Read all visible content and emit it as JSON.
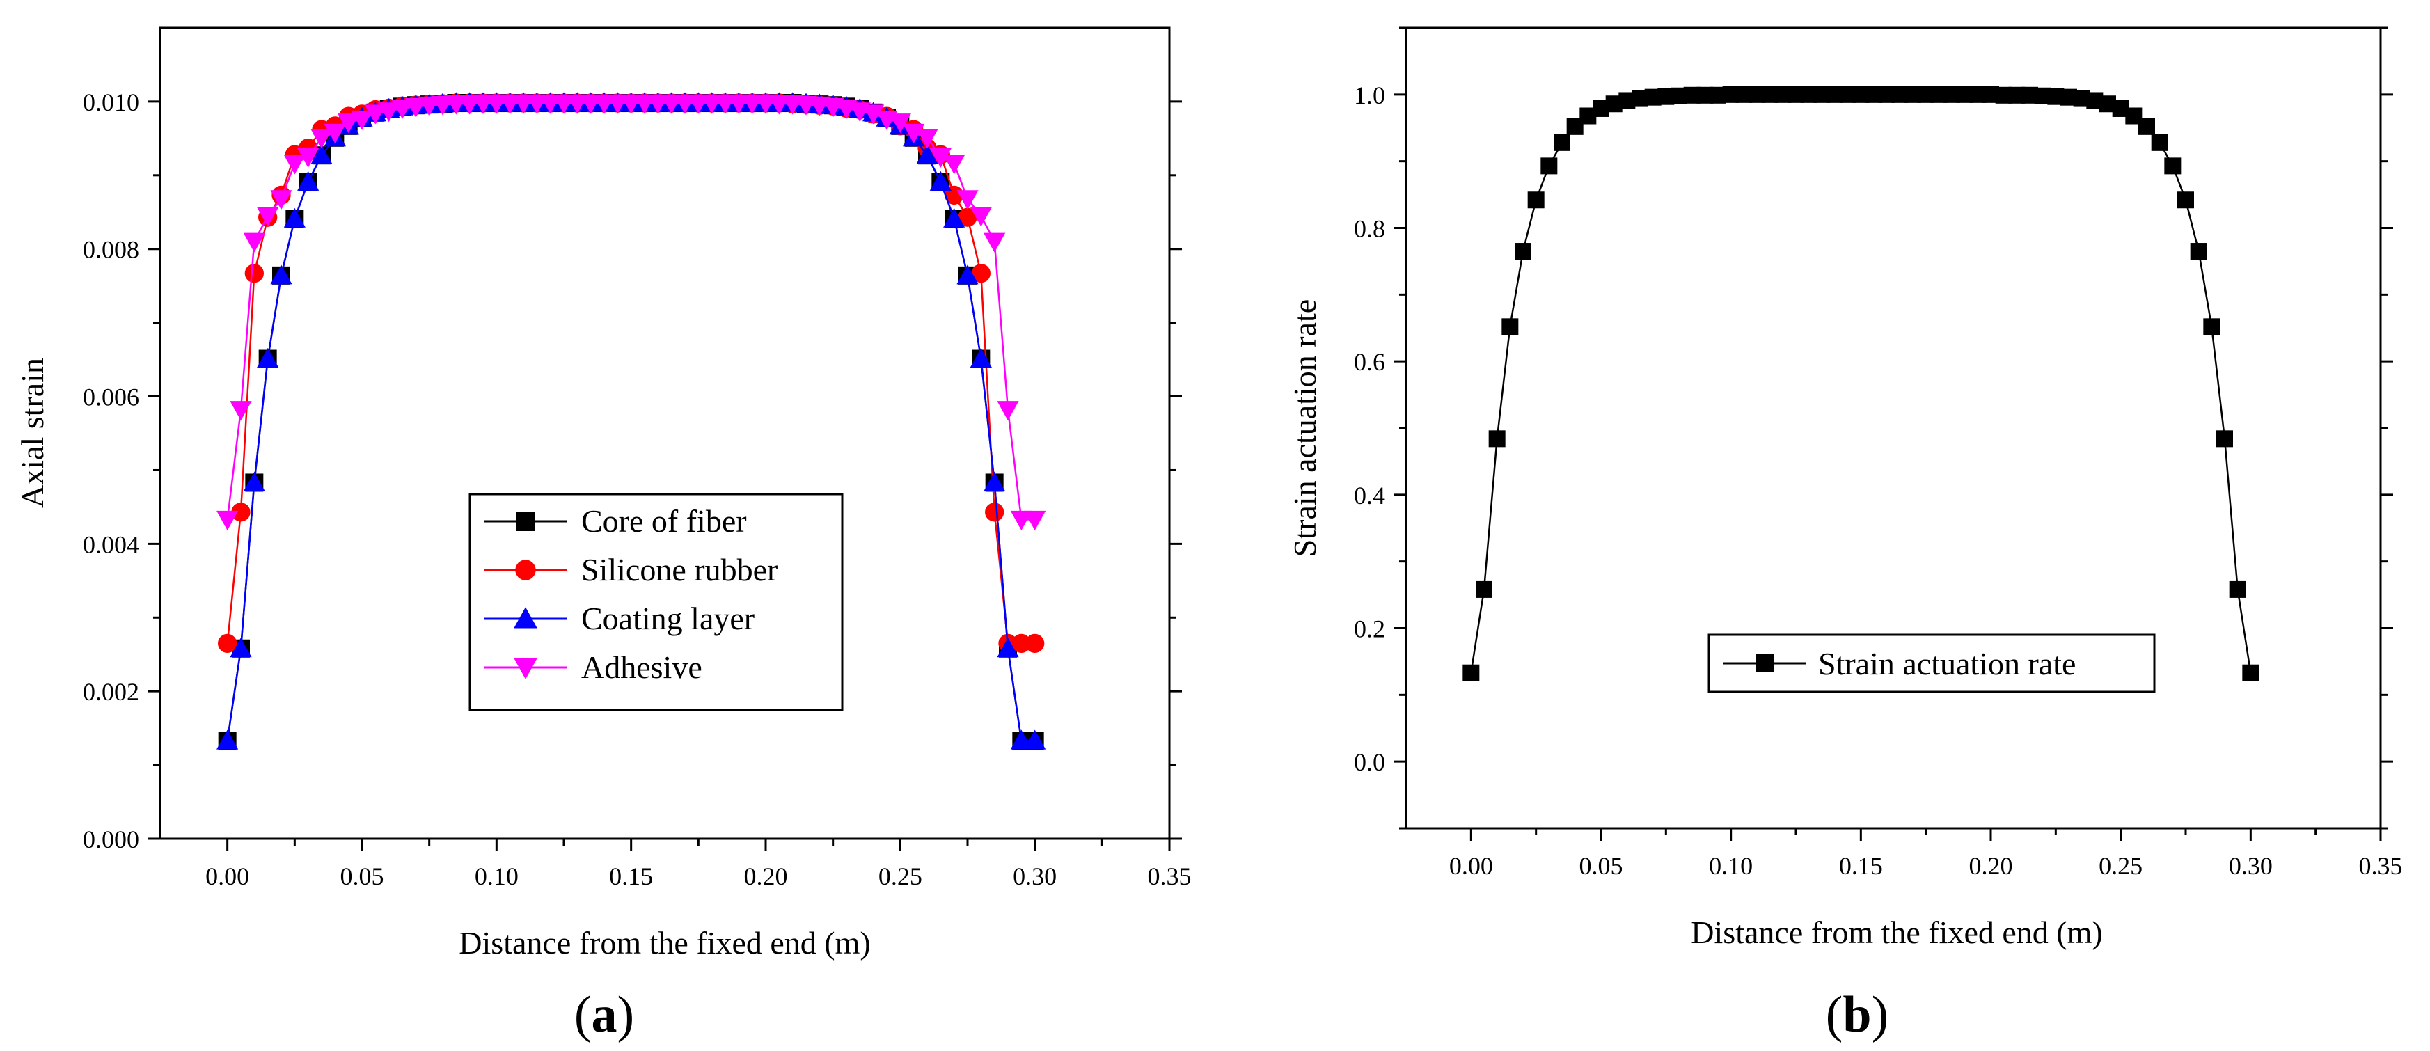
{
  "chart_data": [
    {
      "type": "line",
      "panel_label": {
        "open": "(",
        "letter": "a",
        "close": ")"
      },
      "title": "",
      "xlabel": "Distance from the fixed end (m)",
      "ylabel": "Axial strain",
      "xlim": [
        -0.025,
        0.35
      ],
      "ylim": [
        0.0,
        0.011
      ],
      "xticks": [
        0.0,
        0.05,
        0.1,
        0.15,
        0.2,
        0.25,
        0.3,
        0.35
      ],
      "xtick_labels": [
        "0.00",
        "0.05",
        "0.10",
        "0.15",
        "0.20",
        "0.25",
        "0.30",
        "0.35"
      ],
      "yticks": [
        0.0,
        0.002,
        0.004,
        0.006,
        0.008,
        0.01
      ],
      "ytick_labels": [
        "0.000",
        "0.002",
        "0.004",
        "0.006",
        "0.008",
        "0.010"
      ],
      "legend_position": "center-left",
      "series": [
        {
          "name": "Core of fiber",
          "color": "#000000",
          "marker": "square",
          "x": [
            0.0,
            0.005,
            0.01,
            0.015,
            0.02,
            0.025,
            0.03,
            0.035,
            0.04,
            0.045,
            0.05,
            0.055,
            0.06,
            0.065,
            0.07,
            0.075,
            0.08,
            0.085,
            0.09,
            0.095,
            0.1,
            0.105,
            0.11,
            0.115,
            0.12,
            0.125,
            0.13,
            0.135,
            0.14,
            0.145,
            0.15,
            0.155,
            0.16,
            0.165,
            0.17,
            0.175,
            0.18,
            0.185,
            0.19,
            0.195,
            0.2,
            0.205,
            0.21,
            0.215,
            0.22,
            0.225,
            0.23,
            0.235,
            0.24,
            0.245,
            0.25,
            0.255,
            0.26,
            0.265,
            0.27,
            0.275,
            0.28,
            0.285,
            0.29,
            0.295,
            0.3
          ],
          "y": [
            0.00133,
            0.00258,
            0.00483,
            0.00651,
            0.00764,
            0.00841,
            0.00891,
            0.00927,
            0.00951,
            0.00967,
            0.00978,
            0.00985,
            0.0099,
            0.00993,
            0.00995,
            0.00996,
            0.00997,
            0.00998,
            0.00998,
            0.00998,
            0.00998,
            0.00998,
            0.00998,
            0.00998,
            0.00998,
            0.00998,
            0.00998,
            0.00998,
            0.00998,
            0.00998,
            0.00998,
            0.00998,
            0.00998,
            0.00998,
            0.00998,
            0.00998,
            0.00998,
            0.00998,
            0.00998,
            0.00998,
            0.00998,
            0.00998,
            0.00998,
            0.00997,
            0.00996,
            0.00995,
            0.00993,
            0.0099,
            0.00985,
            0.00978,
            0.00967,
            0.00951,
            0.00927,
            0.00891,
            0.00841,
            0.00764,
            0.00651,
            0.00483,
            0.00258,
            0.00133,
            0.00133
          ]
        },
        {
          "name": "Silicone rubber",
          "color": "#ff0000",
          "marker": "circle",
          "x": [
            0.0,
            0.005,
            0.01,
            0.015,
            0.02,
            0.025,
            0.03,
            0.035,
            0.04,
            0.045,
            0.05,
            0.055,
            0.06,
            0.065,
            0.07,
            0.075,
            0.08,
            0.085,
            0.09,
            0.095,
            0.1,
            0.105,
            0.11,
            0.115,
            0.12,
            0.125,
            0.13,
            0.135,
            0.14,
            0.145,
            0.15,
            0.155,
            0.16,
            0.165,
            0.17,
            0.175,
            0.18,
            0.185,
            0.19,
            0.195,
            0.2,
            0.205,
            0.21,
            0.215,
            0.22,
            0.225,
            0.23,
            0.235,
            0.24,
            0.245,
            0.25,
            0.255,
            0.26,
            0.265,
            0.27,
            0.275,
            0.28,
            0.285,
            0.29,
            0.295,
            0.3
          ],
          "y": [
            0.00265,
            0.00443,
            0.00767,
            0.00843,
            0.00873,
            0.00928,
            0.00937,
            0.00962,
            0.00967,
            0.0098,
            0.00983,
            0.00989,
            0.00991,
            0.00994,
            0.00995,
            0.00996,
            0.00997,
            0.00998,
            0.00998,
            0.00998,
            0.00998,
            0.00998,
            0.00998,
            0.00998,
            0.00998,
            0.00998,
            0.00998,
            0.00998,
            0.00998,
            0.00998,
            0.00998,
            0.00998,
            0.00998,
            0.00998,
            0.00998,
            0.00998,
            0.00998,
            0.00998,
            0.00998,
            0.00998,
            0.00998,
            0.00998,
            0.00997,
            0.00996,
            0.00995,
            0.00994,
            0.00991,
            0.00989,
            0.00983,
            0.0098,
            0.00967,
            0.00962,
            0.00937,
            0.00928,
            0.00873,
            0.00843,
            0.00767,
            0.00443,
            0.00265,
            0.00265,
            0.00265
          ]
        },
        {
          "name": "Coating layer",
          "color": "#0000ff",
          "marker": "triangle-up",
          "x": [
            0.0,
            0.005,
            0.01,
            0.015,
            0.02,
            0.025,
            0.03,
            0.035,
            0.04,
            0.045,
            0.05,
            0.055,
            0.06,
            0.065,
            0.07,
            0.075,
            0.08,
            0.085,
            0.09,
            0.095,
            0.1,
            0.105,
            0.11,
            0.115,
            0.12,
            0.125,
            0.13,
            0.135,
            0.14,
            0.145,
            0.15,
            0.155,
            0.16,
            0.165,
            0.17,
            0.175,
            0.18,
            0.185,
            0.19,
            0.195,
            0.2,
            0.205,
            0.21,
            0.215,
            0.22,
            0.225,
            0.23,
            0.235,
            0.24,
            0.245,
            0.25,
            0.255,
            0.26,
            0.265,
            0.27,
            0.275,
            0.28,
            0.285,
            0.29,
            0.295,
            0.3
          ],
          "y": [
            0.00133,
            0.00258,
            0.00483,
            0.00651,
            0.00764,
            0.00841,
            0.00891,
            0.00927,
            0.00951,
            0.00967,
            0.00978,
            0.00985,
            0.0099,
            0.00993,
            0.00995,
            0.00996,
            0.00997,
            0.00998,
            0.00998,
            0.00998,
            0.00998,
            0.00998,
            0.00998,
            0.00998,
            0.00998,
            0.00998,
            0.00998,
            0.00998,
            0.00998,
            0.00998,
            0.00998,
            0.00998,
            0.00998,
            0.00998,
            0.00998,
            0.00998,
            0.00998,
            0.00998,
            0.00998,
            0.00998,
            0.00998,
            0.00998,
            0.00998,
            0.00997,
            0.00996,
            0.00995,
            0.00993,
            0.0099,
            0.00985,
            0.00978,
            0.00967,
            0.00951,
            0.00927,
            0.00891,
            0.00841,
            0.00764,
            0.00651,
            0.00483,
            0.00258,
            0.00133,
            0.00133
          ]
        },
        {
          "name": "Adhesive",
          "color": "#ff00ff",
          "marker": "triangle-down",
          "x": [
            0.0,
            0.005,
            0.01,
            0.015,
            0.02,
            0.025,
            0.03,
            0.035,
            0.04,
            0.045,
            0.05,
            0.055,
            0.06,
            0.065,
            0.07,
            0.075,
            0.08,
            0.085,
            0.09,
            0.095,
            0.1,
            0.105,
            0.11,
            0.115,
            0.12,
            0.125,
            0.13,
            0.135,
            0.14,
            0.145,
            0.15,
            0.155,
            0.16,
            0.165,
            0.17,
            0.175,
            0.18,
            0.185,
            0.19,
            0.195,
            0.2,
            0.205,
            0.21,
            0.215,
            0.22,
            0.225,
            0.23,
            0.235,
            0.24,
            0.245,
            0.25,
            0.255,
            0.26,
            0.265,
            0.27,
            0.275,
            0.28,
            0.285,
            0.29,
            0.295,
            0.3
          ],
          "y": [
            0.00433,
            0.00582,
            0.0081,
            0.00845,
            0.00868,
            0.00916,
            0.00925,
            0.00951,
            0.00958,
            0.00972,
            0.00976,
            0.00984,
            0.00987,
            0.00991,
            0.00993,
            0.00995,
            0.00996,
            0.00997,
            0.00997,
            0.00998,
            0.00998,
            0.00998,
            0.00998,
            0.00998,
            0.00998,
            0.00998,
            0.00998,
            0.00998,
            0.00998,
            0.00998,
            0.00998,
            0.00998,
            0.00998,
            0.00998,
            0.00998,
            0.00998,
            0.00998,
            0.00998,
            0.00998,
            0.00998,
            0.00998,
            0.00997,
            0.00997,
            0.00996,
            0.00995,
            0.00993,
            0.00991,
            0.00987,
            0.00984,
            0.00976,
            0.00972,
            0.00958,
            0.00951,
            0.00925,
            0.00916,
            0.00868,
            0.00845,
            0.0081,
            0.00582,
            0.00433,
            0.00433
          ]
        }
      ]
    },
    {
      "type": "line",
      "panel_label": {
        "open": "(",
        "letter": "b",
        "close": ")"
      },
      "title": "",
      "xlabel": "Distance from the fixed end (m)",
      "ylabel": "Strain actuation rate",
      "xlim": [
        -0.025,
        0.35
      ],
      "ylim": [
        -0.1,
        1.1
      ],
      "xticks": [
        0.0,
        0.05,
        0.1,
        0.15,
        0.2,
        0.25,
        0.3,
        0.35
      ],
      "xtick_labels": [
        "0.00",
        "0.05",
        "0.10",
        "0.15",
        "0.20",
        "0.25",
        "0.30",
        "0.35"
      ],
      "yticks": [
        0.0,
        0.2,
        0.4,
        0.6,
        0.8,
        1.0
      ],
      "ytick_labels": [
        "0.0",
        "0.2",
        "0.4",
        "0.6",
        "0.8",
        "1.0"
      ],
      "legend_position": "center",
      "series": [
        {
          "name": "Strain actuation rate",
          "color": "#000000",
          "marker": "square",
          "x": [
            0.0,
            0.005,
            0.01,
            0.015,
            0.02,
            0.025,
            0.03,
            0.035,
            0.04,
            0.045,
            0.05,
            0.055,
            0.06,
            0.065,
            0.07,
            0.075,
            0.08,
            0.085,
            0.09,
            0.095,
            0.1,
            0.105,
            0.11,
            0.115,
            0.12,
            0.125,
            0.13,
            0.135,
            0.14,
            0.145,
            0.15,
            0.155,
            0.16,
            0.165,
            0.17,
            0.175,
            0.18,
            0.185,
            0.19,
            0.195,
            0.2,
            0.205,
            0.21,
            0.215,
            0.22,
            0.225,
            0.23,
            0.235,
            0.24,
            0.245,
            0.25,
            0.255,
            0.26,
            0.265,
            0.27,
            0.275,
            0.28,
            0.285,
            0.29,
            0.295,
            0.3
          ],
          "y": [
            0.133,
            0.258,
            0.484,
            0.652,
            0.765,
            0.842,
            0.893,
            0.928,
            0.952,
            0.968,
            0.979,
            0.986,
            0.991,
            0.994,
            0.996,
            0.997,
            0.998,
            0.999,
            0.999,
            0.999,
            1.0,
            1.0,
            1.0,
            1.0,
            1.0,
            1.0,
            1.0,
            1.0,
            1.0,
            1.0,
            1.0,
            1.0,
            1.0,
            1.0,
            1.0,
            1.0,
            1.0,
            1.0,
            1.0,
            1.0,
            1.0,
            0.999,
            0.999,
            0.999,
            0.998,
            0.997,
            0.996,
            0.994,
            0.991,
            0.986,
            0.979,
            0.968,
            0.952,
            0.928,
            0.893,
            0.842,
            0.765,
            0.652,
            0.484,
            0.258,
            0.133
          ]
        }
      ]
    }
  ]
}
